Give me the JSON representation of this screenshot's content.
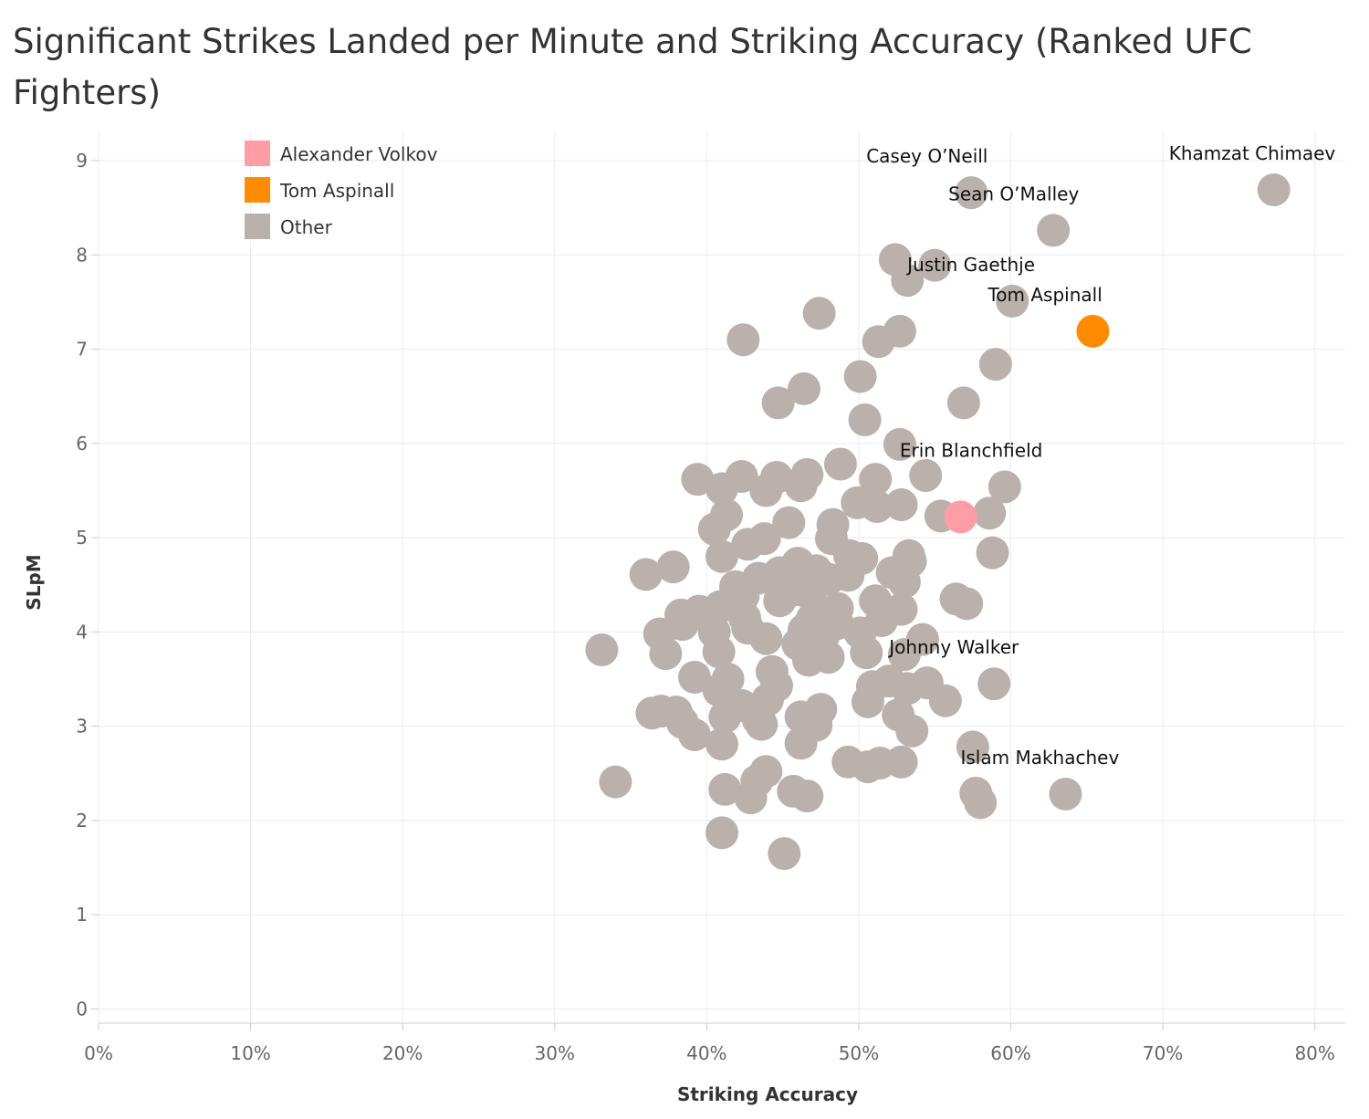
{
  "chart_data": {
    "type": "scatter",
    "title": "Significant Strikes Landed per Minute and Striking Accuracy (Ranked UFC Fighters)",
    "xlabel": "Striking Accuracy",
    "ylabel": "SLpM",
    "xlim": [
      0,
      0.82
    ],
    "ylim": [
      -0.15,
      9.3
    ],
    "x_ticks": [
      {
        "value": 0.0,
        "label": "0%"
      },
      {
        "value": 0.1,
        "label": "10%"
      },
      {
        "value": 0.2,
        "label": "20%"
      },
      {
        "value": 0.3,
        "label": "30%"
      },
      {
        "value": 0.4,
        "label": "40%"
      },
      {
        "value": 0.5,
        "label": "50%"
      },
      {
        "value": 0.6,
        "label": "60%"
      },
      {
        "value": 0.7,
        "label": "70%"
      },
      {
        "value": 0.8,
        "label": "80%"
      }
    ],
    "y_ticks": [
      {
        "value": 0,
        "label": "0"
      },
      {
        "value": 1,
        "label": "1"
      },
      {
        "value": 2,
        "label": "2"
      },
      {
        "value": 3,
        "label": "3"
      },
      {
        "value": 4,
        "label": "4"
      },
      {
        "value": 5,
        "label": "5"
      },
      {
        "value": 6,
        "label": "6"
      },
      {
        "value": 7,
        "label": "7"
      },
      {
        "value": 8,
        "label": "8"
      },
      {
        "value": 9,
        "label": "9"
      }
    ],
    "grid": true,
    "legend_position": "top-left",
    "legend": [
      {
        "name": "Alexander Volkov",
        "color": "#ff9da7"
      },
      {
        "name": "Tom Aspinall",
        "color": "#ff8c00"
      },
      {
        "name": "Other",
        "color": "#bab0ac"
      }
    ],
    "series": [
      {
        "name": "Other",
        "color": "#bab0ac",
        "points": [
          {
            "x": 0.773,
            "y": 8.69
          },
          {
            "x": 0.574,
            "y": 8.66
          },
          {
            "x": 0.628,
            "y": 8.26
          },
          {
            "x": 0.524,
            "y": 7.95
          },
          {
            "x": 0.55,
            "y": 7.89
          },
          {
            "x": 0.532,
            "y": 7.73
          },
          {
            "x": 0.601,
            "y": 7.51
          },
          {
            "x": 0.474,
            "y": 7.38
          },
          {
            "x": 0.527,
            "y": 7.19
          },
          {
            "x": 0.424,
            "y": 7.1
          },
          {
            "x": 0.513,
            "y": 7.08
          },
          {
            "x": 0.59,
            "y": 6.84
          },
          {
            "x": 0.501,
            "y": 6.71
          },
          {
            "x": 0.464,
            "y": 6.58
          },
          {
            "x": 0.447,
            "y": 6.43
          },
          {
            "x": 0.569,
            "y": 6.43
          },
          {
            "x": 0.504,
            "y": 6.25
          },
          {
            "x": 0.527,
            "y": 5.99
          },
          {
            "x": 0.488,
            "y": 5.78
          },
          {
            "x": 0.466,
            "y": 5.67
          },
          {
            "x": 0.544,
            "y": 5.66
          },
          {
            "x": 0.423,
            "y": 5.65
          },
          {
            "x": 0.446,
            "y": 5.64
          },
          {
            "x": 0.394,
            "y": 5.62
          },
          {
            "x": 0.511,
            "y": 5.62
          },
          {
            "x": 0.462,
            "y": 5.55
          },
          {
            "x": 0.596,
            "y": 5.54
          },
          {
            "x": 0.41,
            "y": 5.52
          },
          {
            "x": 0.439,
            "y": 5.5
          },
          {
            "x": 0.499,
            "y": 5.37
          },
          {
            "x": 0.528,
            "y": 5.35
          },
          {
            "x": 0.512,
            "y": 5.33
          },
          {
            "x": 0.554,
            "y": 5.23
          },
          {
            "x": 0.586,
            "y": 5.26
          },
          {
            "x": 0.413,
            "y": 5.24
          },
          {
            "x": 0.454,
            "y": 5.16
          },
          {
            "x": 0.483,
            "y": 5.14
          },
          {
            "x": 0.405,
            "y": 5.09
          },
          {
            "x": 0.438,
            "y": 4.99
          },
          {
            "x": 0.482,
            "y": 4.99
          },
          {
            "x": 0.427,
            "y": 4.93
          },
          {
            "x": 0.588,
            "y": 4.84
          },
          {
            "x": 0.533,
            "y": 4.81
          },
          {
            "x": 0.41,
            "y": 4.8
          },
          {
            "x": 0.494,
            "y": 4.81
          },
          {
            "x": 0.502,
            "y": 4.78
          },
          {
            "x": 0.534,
            "y": 4.75
          },
          {
            "x": 0.46,
            "y": 4.73
          },
          {
            "x": 0.378,
            "y": 4.69
          },
          {
            "x": 0.472,
            "y": 4.65
          },
          {
            "x": 0.36,
            "y": 4.61
          },
          {
            "x": 0.448,
            "y": 4.63
          },
          {
            "x": 0.522,
            "y": 4.63
          },
          {
            "x": 0.493,
            "y": 4.6
          },
          {
            "x": 0.434,
            "y": 4.57
          },
          {
            "x": 0.48,
            "y": 4.56
          },
          {
            "x": 0.53,
            "y": 4.53
          },
          {
            "x": 0.419,
            "y": 4.48
          },
          {
            "x": 0.456,
            "y": 4.44
          },
          {
            "x": 0.468,
            "y": 4.4
          },
          {
            "x": 0.424,
            "y": 4.38
          },
          {
            "x": 0.564,
            "y": 4.35
          },
          {
            "x": 0.571,
            "y": 4.3
          },
          {
            "x": 0.448,
            "y": 4.33
          },
          {
            "x": 0.511,
            "y": 4.33
          },
          {
            "x": 0.409,
            "y": 4.27
          },
          {
            "x": 0.486,
            "y": 4.25
          },
          {
            "x": 0.528,
            "y": 4.24
          },
          {
            "x": 0.395,
            "y": 4.22
          },
          {
            "x": 0.383,
            "y": 4.18
          },
          {
            "x": 0.401,
            "y": 4.16
          },
          {
            "x": 0.425,
            "y": 4.15
          },
          {
            "x": 0.469,
            "y": 4.13
          },
          {
            "x": 0.515,
            "y": 4.12
          },
          {
            "x": 0.486,
            "y": 4.09
          },
          {
            "x": 0.384,
            "y": 4.08
          },
          {
            "x": 0.427,
            "y": 4.04
          },
          {
            "x": 0.464,
            "y": 4.02
          },
          {
            "x": 0.405,
            "y": 4.0
          },
          {
            "x": 0.501,
            "y": 3.99
          },
          {
            "x": 0.369,
            "y": 3.98
          },
          {
            "x": 0.477,
            "y": 3.97
          },
          {
            "x": 0.542,
            "y": 3.92
          },
          {
            "x": 0.439,
            "y": 3.93
          },
          {
            "x": 0.46,
            "y": 3.87
          },
          {
            "x": 0.331,
            "y": 3.81
          },
          {
            "x": 0.373,
            "y": 3.77
          },
          {
            "x": 0.408,
            "y": 3.79
          },
          {
            "x": 0.505,
            "y": 3.78
          },
          {
            "x": 0.53,
            "y": 3.76
          },
          {
            "x": 0.48,
            "y": 3.73
          },
          {
            "x": 0.467,
            "y": 3.7
          },
          {
            "x": 0.443,
            "y": 3.58
          },
          {
            "x": 0.52,
            "y": 3.48
          },
          {
            "x": 0.414,
            "y": 3.5
          },
          {
            "x": 0.392,
            "y": 3.52
          },
          {
            "x": 0.545,
            "y": 3.46
          },
          {
            "x": 0.589,
            "y": 3.45
          },
          {
            "x": 0.446,
            "y": 3.43
          },
          {
            "x": 0.509,
            "y": 3.42
          },
          {
            "x": 0.408,
            "y": 3.38
          },
          {
            "x": 0.532,
            "y": 3.4
          },
          {
            "x": 0.557,
            "y": 3.27
          },
          {
            "x": 0.506,
            "y": 3.26
          },
          {
            "x": 0.44,
            "y": 3.28
          },
          {
            "x": 0.423,
            "y": 3.22
          },
          {
            "x": 0.364,
            "y": 3.14
          },
          {
            "x": 0.37,
            "y": 3.16
          },
          {
            "x": 0.38,
            "y": 3.15
          },
          {
            "x": 0.475,
            "y": 3.18
          },
          {
            "x": 0.526,
            "y": 3.12
          },
          {
            "x": 0.412,
            "y": 3.1
          },
          {
            "x": 0.462,
            "y": 3.1
          },
          {
            "x": 0.434,
            "y": 3.07
          },
          {
            "x": 0.384,
            "y": 3.04
          },
          {
            "x": 0.436,
            "y": 3.02
          },
          {
            "x": 0.472,
            "y": 3.01
          },
          {
            "x": 0.535,
            "y": 2.95
          },
          {
            "x": 0.392,
            "y": 2.91
          },
          {
            "x": 0.41,
            "y": 2.81
          },
          {
            "x": 0.462,
            "y": 2.82
          },
          {
            "x": 0.575,
            "y": 2.78
          },
          {
            "x": 0.493,
            "y": 2.62
          },
          {
            "x": 0.514,
            "y": 2.61
          },
          {
            "x": 0.528,
            "y": 2.62
          },
          {
            "x": 0.506,
            "y": 2.57
          },
          {
            "x": 0.439,
            "y": 2.52
          },
          {
            "x": 0.433,
            "y": 2.42
          },
          {
            "x": 0.34,
            "y": 2.41
          },
          {
            "x": 0.412,
            "y": 2.33
          },
          {
            "x": 0.457,
            "y": 2.31
          },
          {
            "x": 0.577,
            "y": 2.29
          },
          {
            "x": 0.636,
            "y": 2.28
          },
          {
            "x": 0.466,
            "y": 2.26
          },
          {
            "x": 0.429,
            "y": 2.24
          },
          {
            "x": 0.58,
            "y": 2.19
          },
          {
            "x": 0.41,
            "y": 1.87
          },
          {
            "x": 0.451,
            "y": 1.65
          }
        ]
      },
      {
        "name": "Alexander Volkov",
        "color": "#ff9da7",
        "points": [
          {
            "x": 0.567,
            "y": 5.22
          }
        ]
      },
      {
        "name": "Tom Aspinall",
        "color": "#ff8c00",
        "points": [
          {
            "x": 0.654,
            "y": 7.19
          }
        ]
      }
    ],
    "annotations": [
      {
        "text": "Khamzat Chimaev",
        "x": 0.773,
        "y": 8.69
      },
      {
        "text": "Casey O’Neill",
        "x": 0.574,
        "y": 8.66
      },
      {
        "text": "Sean O’Malley",
        "x": 0.628,
        "y": 8.26
      },
      {
        "text": "Justin Gaethje",
        "x": 0.601,
        "y": 7.51
      },
      {
        "text": "Tom Aspinall",
        "x": 0.654,
        "y": 7.19
      },
      {
        "text": "Erin Blanchfield",
        "x": 0.596,
        "y": 5.54
      },
      {
        "text": "Johnny Walker",
        "x": 0.589,
        "y": 3.45
      },
      {
        "text": "Islam Makhachev",
        "x": 0.636,
        "y": 2.28
      }
    ]
  }
}
